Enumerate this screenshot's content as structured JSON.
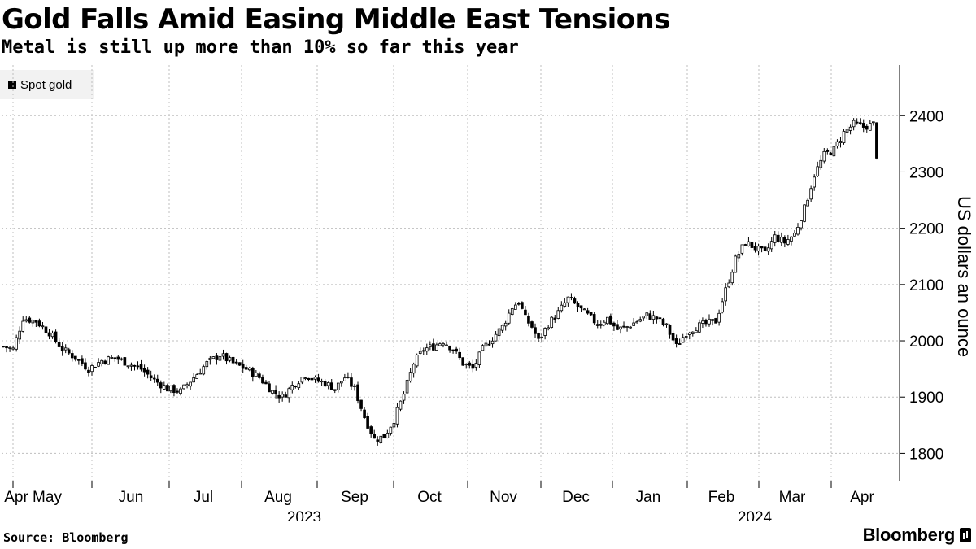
{
  "header": {
    "title": "Gold Falls Amid Easing Middle East Tensions",
    "subtitle": "Metal is still up more than 10% so far this year"
  },
  "footer": {
    "source": "Source: Bloomberg",
    "brand": "Bloomberg"
  },
  "colors": {
    "candle": "#000000",
    "grid": "#bfbfbf",
    "legend_bg": "#f2f2f2"
  },
  "chart_data": {
    "type": "candlestick",
    "title": "Gold Falls Amid Easing Middle East Tensions",
    "subtitle": "Metal is still up more than 10% so far this year",
    "legend": [
      {
        "name": "Spot gold",
        "color": "#000000"
      }
    ],
    "ylabel": "US dollars an ounce",
    "ylim": [
      1750,
      2490
    ],
    "yticks": [
      1800,
      1900,
      2000,
      2100,
      2200,
      2300,
      2400
    ],
    "xticks": [
      "Apr",
      "May",
      "Jun",
      "Jul",
      "Aug",
      "Sep",
      "Oct",
      "Nov",
      "Dec",
      "Jan",
      "Feb",
      "Mar",
      "Apr"
    ],
    "years": [
      "2023",
      "2024"
    ],
    "series": [
      {
        "name": "Spot gold",
        "anchors": [
          [
            0,
            1990
          ],
          [
            3,
            1985
          ],
          [
            6,
            2040
          ],
          [
            10,
            2035
          ],
          [
            14,
            2015
          ],
          [
            18,
            1985
          ],
          [
            22,
            1970
          ],
          [
            26,
            1950
          ],
          [
            30,
            1965
          ],
          [
            34,
            1970
          ],
          [
            38,
            1960
          ],
          [
            42,
            1950
          ],
          [
            46,
            1930
          ],
          [
            50,
            1915
          ],
          [
            54,
            1910
          ],
          [
            58,
            1935
          ],
          [
            62,
            1960
          ],
          [
            66,
            1975
          ],
          [
            70,
            1960
          ],
          [
            74,
            1950
          ],
          [
            78,
            1935
          ],
          [
            82,
            1910
          ],
          [
            85,
            1900
          ],
          [
            88,
            1920
          ],
          [
            92,
            1940
          ],
          [
            95,
            1930
          ],
          [
            98,
            1925
          ],
          [
            101,
            1915
          ],
          [
            104,
            1935
          ],
          [
            107,
            1915
          ],
          [
            110,
            1865
          ],
          [
            113,
            1825
          ],
          [
            116,
            1830
          ],
          [
            119,
            1860
          ],
          [
            122,
            1905
          ],
          [
            125,
            1960
          ],
          [
            128,
            1985
          ],
          [
            131,
            1990
          ],
          [
            134,
            2000
          ],
          [
            137,
            1985
          ],
          [
            140,
            1960
          ],
          [
            143,
            1950
          ],
          [
            146,
            1985
          ],
          [
            149,
            2005
          ],
          [
            152,
            2025
          ],
          [
            155,
            2060
          ],
          [
            157,
            2070
          ],
          [
            159,
            2040
          ],
          [
            161,
            2025
          ],
          [
            163,
            2000
          ],
          [
            166,
            2030
          ],
          [
            169,
            2050
          ],
          [
            172,
            2075
          ],
          [
            175,
            2060
          ],
          [
            178,
            2045
          ],
          [
            181,
            2030
          ],
          [
            184,
            2040
          ],
          [
            187,
            2020
          ],
          [
            190,
            2025
          ],
          [
            193,
            2035
          ],
          [
            196,
            2045
          ],
          [
            199,
            2040
          ],
          [
            202,
            2025
          ],
          [
            205,
            1990
          ],
          [
            208,
            2015
          ],
          [
            211,
            2025
          ],
          [
            214,
            2030
          ],
          [
            217,
            2035
          ],
          [
            220,
            2090
          ],
          [
            223,
            2145
          ],
          [
            226,
            2175
          ],
          [
            229,
            2165
          ],
          [
            232,
            2155
          ],
          [
            235,
            2185
          ],
          [
            238,
            2175
          ],
          [
            241,
            2190
          ],
          [
            244,
            2235
          ],
          [
            247,
            2295
          ],
          [
            250,
            2330
          ],
          [
            253,
            2340
          ],
          [
            256,
            2370
          ],
          [
            259,
            2385
          ],
          [
            262,
            2380
          ],
          [
            265,
            2385
          ],
          [
            266,
            2330
          ]
        ]
      }
    ]
  }
}
